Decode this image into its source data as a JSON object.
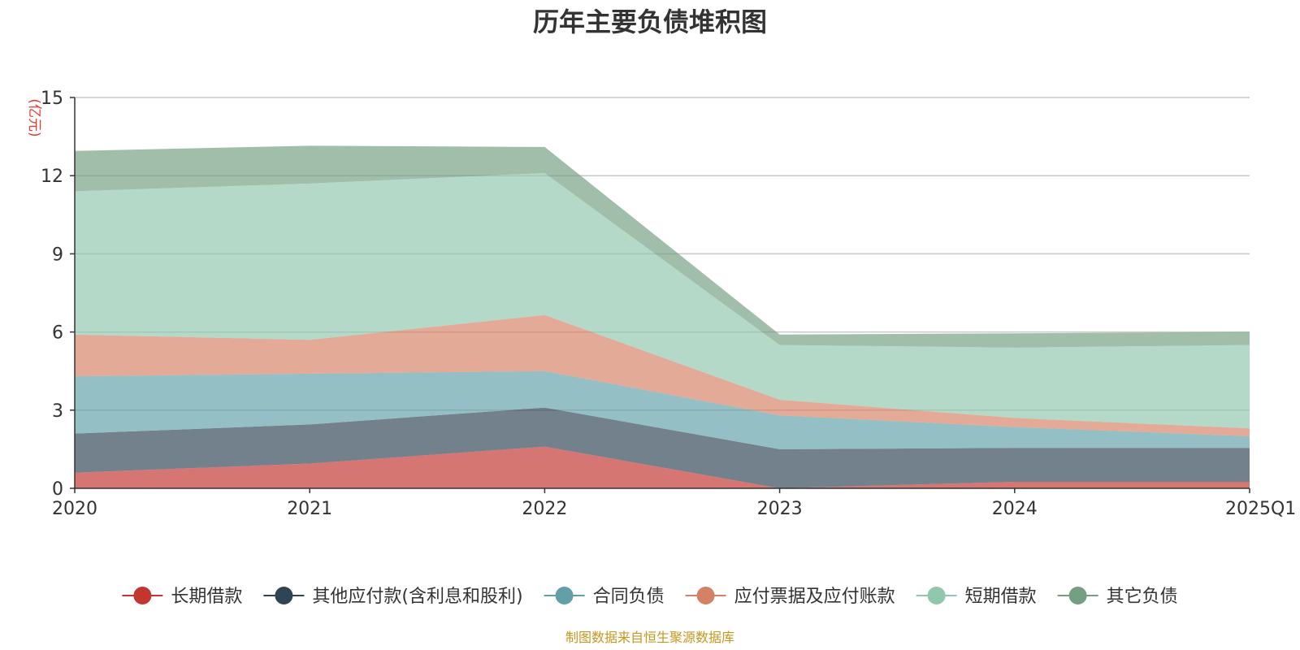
{
  "chart_data": {
    "type": "area",
    "title": "历年主要负债堆积图",
    "unit_label": "(亿元)",
    "categories": [
      "2020",
      "2021",
      "2022",
      "2023",
      "2024",
      "2025Q1"
    ],
    "ylim": [
      0,
      15
    ],
    "yticks": [
      "0",
      "3",
      "6",
      "9",
      "12",
      "15"
    ],
    "stacked": true,
    "grid": true,
    "legend_position": "bottom",
    "series": [
      {
        "name": "长期借款",
        "color": "#c23531",
        "values": [
          0.6,
          0.95,
          1.6,
          0.0,
          0.25,
          0.25
        ]
      },
      {
        "name": "其他应付款(含利息和股利)",
        "color": "#2f4554",
        "values": [
          1.5,
          1.5,
          1.5,
          1.5,
          1.3,
          1.3
        ]
      },
      {
        "name": "合同负债",
        "color": "#61a0a8",
        "values": [
          2.2,
          1.95,
          1.4,
          1.3,
          0.8,
          0.45
        ]
      },
      {
        "name": "应付票据及应付账款",
        "color": "#d48265",
        "values": [
          1.6,
          1.3,
          2.15,
          0.6,
          0.35,
          0.3
        ]
      },
      {
        "name": "短期借款",
        "color": "#91c7ae",
        "values": [
          5.5,
          6.0,
          5.45,
          2.1,
          2.7,
          3.2
        ]
      },
      {
        "name": "其它负债",
        "color": "#749f83",
        "values": [
          1.55,
          1.45,
          1.0,
          0.4,
          0.55,
          0.5
        ]
      }
    ]
  },
  "footer": "制图数据来自恒生聚源数据库"
}
